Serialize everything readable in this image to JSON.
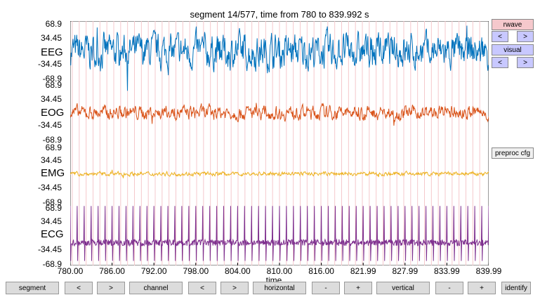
{
  "title": "segment 14/577, time from 780 to 839.992 s",
  "channels": [
    {
      "name": "EEG",
      "color": "#0072bd",
      "amp": 0.45,
      "kind": "noise"
    },
    {
      "name": "EOG",
      "color": "#d95319",
      "amp": 0.18,
      "kind": "noise"
    },
    {
      "name": "EMG",
      "color": "#edb120",
      "amp": 0.05,
      "kind": "noise"
    },
    {
      "name": "ECG",
      "color": "#7e2f8e",
      "amp": 0.9,
      "kind": "spikes"
    }
  ],
  "yticks": {
    "ch0": [
      "68.9",
      "34.45",
      "-34.45",
      "-68.9"
    ],
    "ch1": [
      "68.9",
      "34.45",
      "-34.45",
      "-68.9"
    ],
    "ch2": [
      "68.9",
      "34.45",
      "-34.45",
      "-68.9"
    ],
    "ch3": [
      "68.9",
      "34.45",
      "-34.45",
      "-68.9"
    ]
  },
  "xticks": [
    "780.00",
    "786.00",
    "792.00",
    "798.00",
    "804.00",
    "810.00",
    "816.00",
    "821.99",
    "827.99",
    "833.99",
    "839.99"
  ],
  "xlabel": "time",
  "right_panel": {
    "rwave": "rwave",
    "rwave_prev": "<",
    "rwave_next": ">",
    "visual": "visual",
    "visual_prev": "<",
    "visual_next": ">",
    "preproc": "preproc cfg"
  },
  "bottom": {
    "segment": "segment",
    "segment_prev": "<",
    "segment_next": ">",
    "channel": "channel",
    "channel_prev": "<",
    "channel_next": ">",
    "horizontal": "horizontal",
    "horizontal_minus": "-",
    "horizontal_plus": "+",
    "vertical": "vertical",
    "vertical_minus": "-",
    "vertical_plus": "+",
    "identify": "identify"
  },
  "rwave_marker_color": "#f5c8cc",
  "rwave_count": 60
}
